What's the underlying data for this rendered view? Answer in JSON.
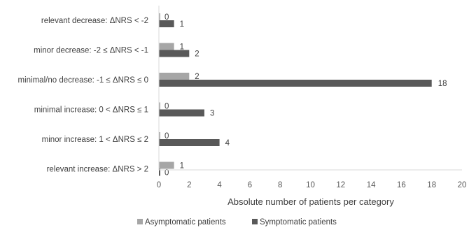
{
  "chart_data": {
    "type": "bar",
    "orientation": "horizontal",
    "categories": [
      "relevant decrease: ΔNRS < -2",
      "minor decrease: -2 ≤ ΔNRS < -1",
      "minimal/no decrease: -1 ≤ ΔNRS ≤ 0",
      "minimal increase: 0 < ΔNRS ≤ 1",
      "minor increase: 1 < ΔNRS ≤ 2",
      "relevant increase: ΔNRS > 2"
    ],
    "series": [
      {
        "name": "Asymptomatic patients",
        "color": "#a6a6a6",
        "values": [
          0,
          1,
          2,
          0,
          0,
          1
        ]
      },
      {
        "name": "Symptomatic patients",
        "color": "#595959",
        "values": [
          1,
          2,
          18,
          3,
          4,
          0
        ]
      }
    ],
    "xlabel": "Absolute number of patients per category",
    "xlim": [
      0,
      20
    ],
    "xticks": [
      "0",
      "2",
      "4",
      "6",
      "8",
      "10",
      "12",
      "14",
      "16",
      "18",
      "20"
    ],
    "legend_position": "bottom",
    "grid": false
  }
}
